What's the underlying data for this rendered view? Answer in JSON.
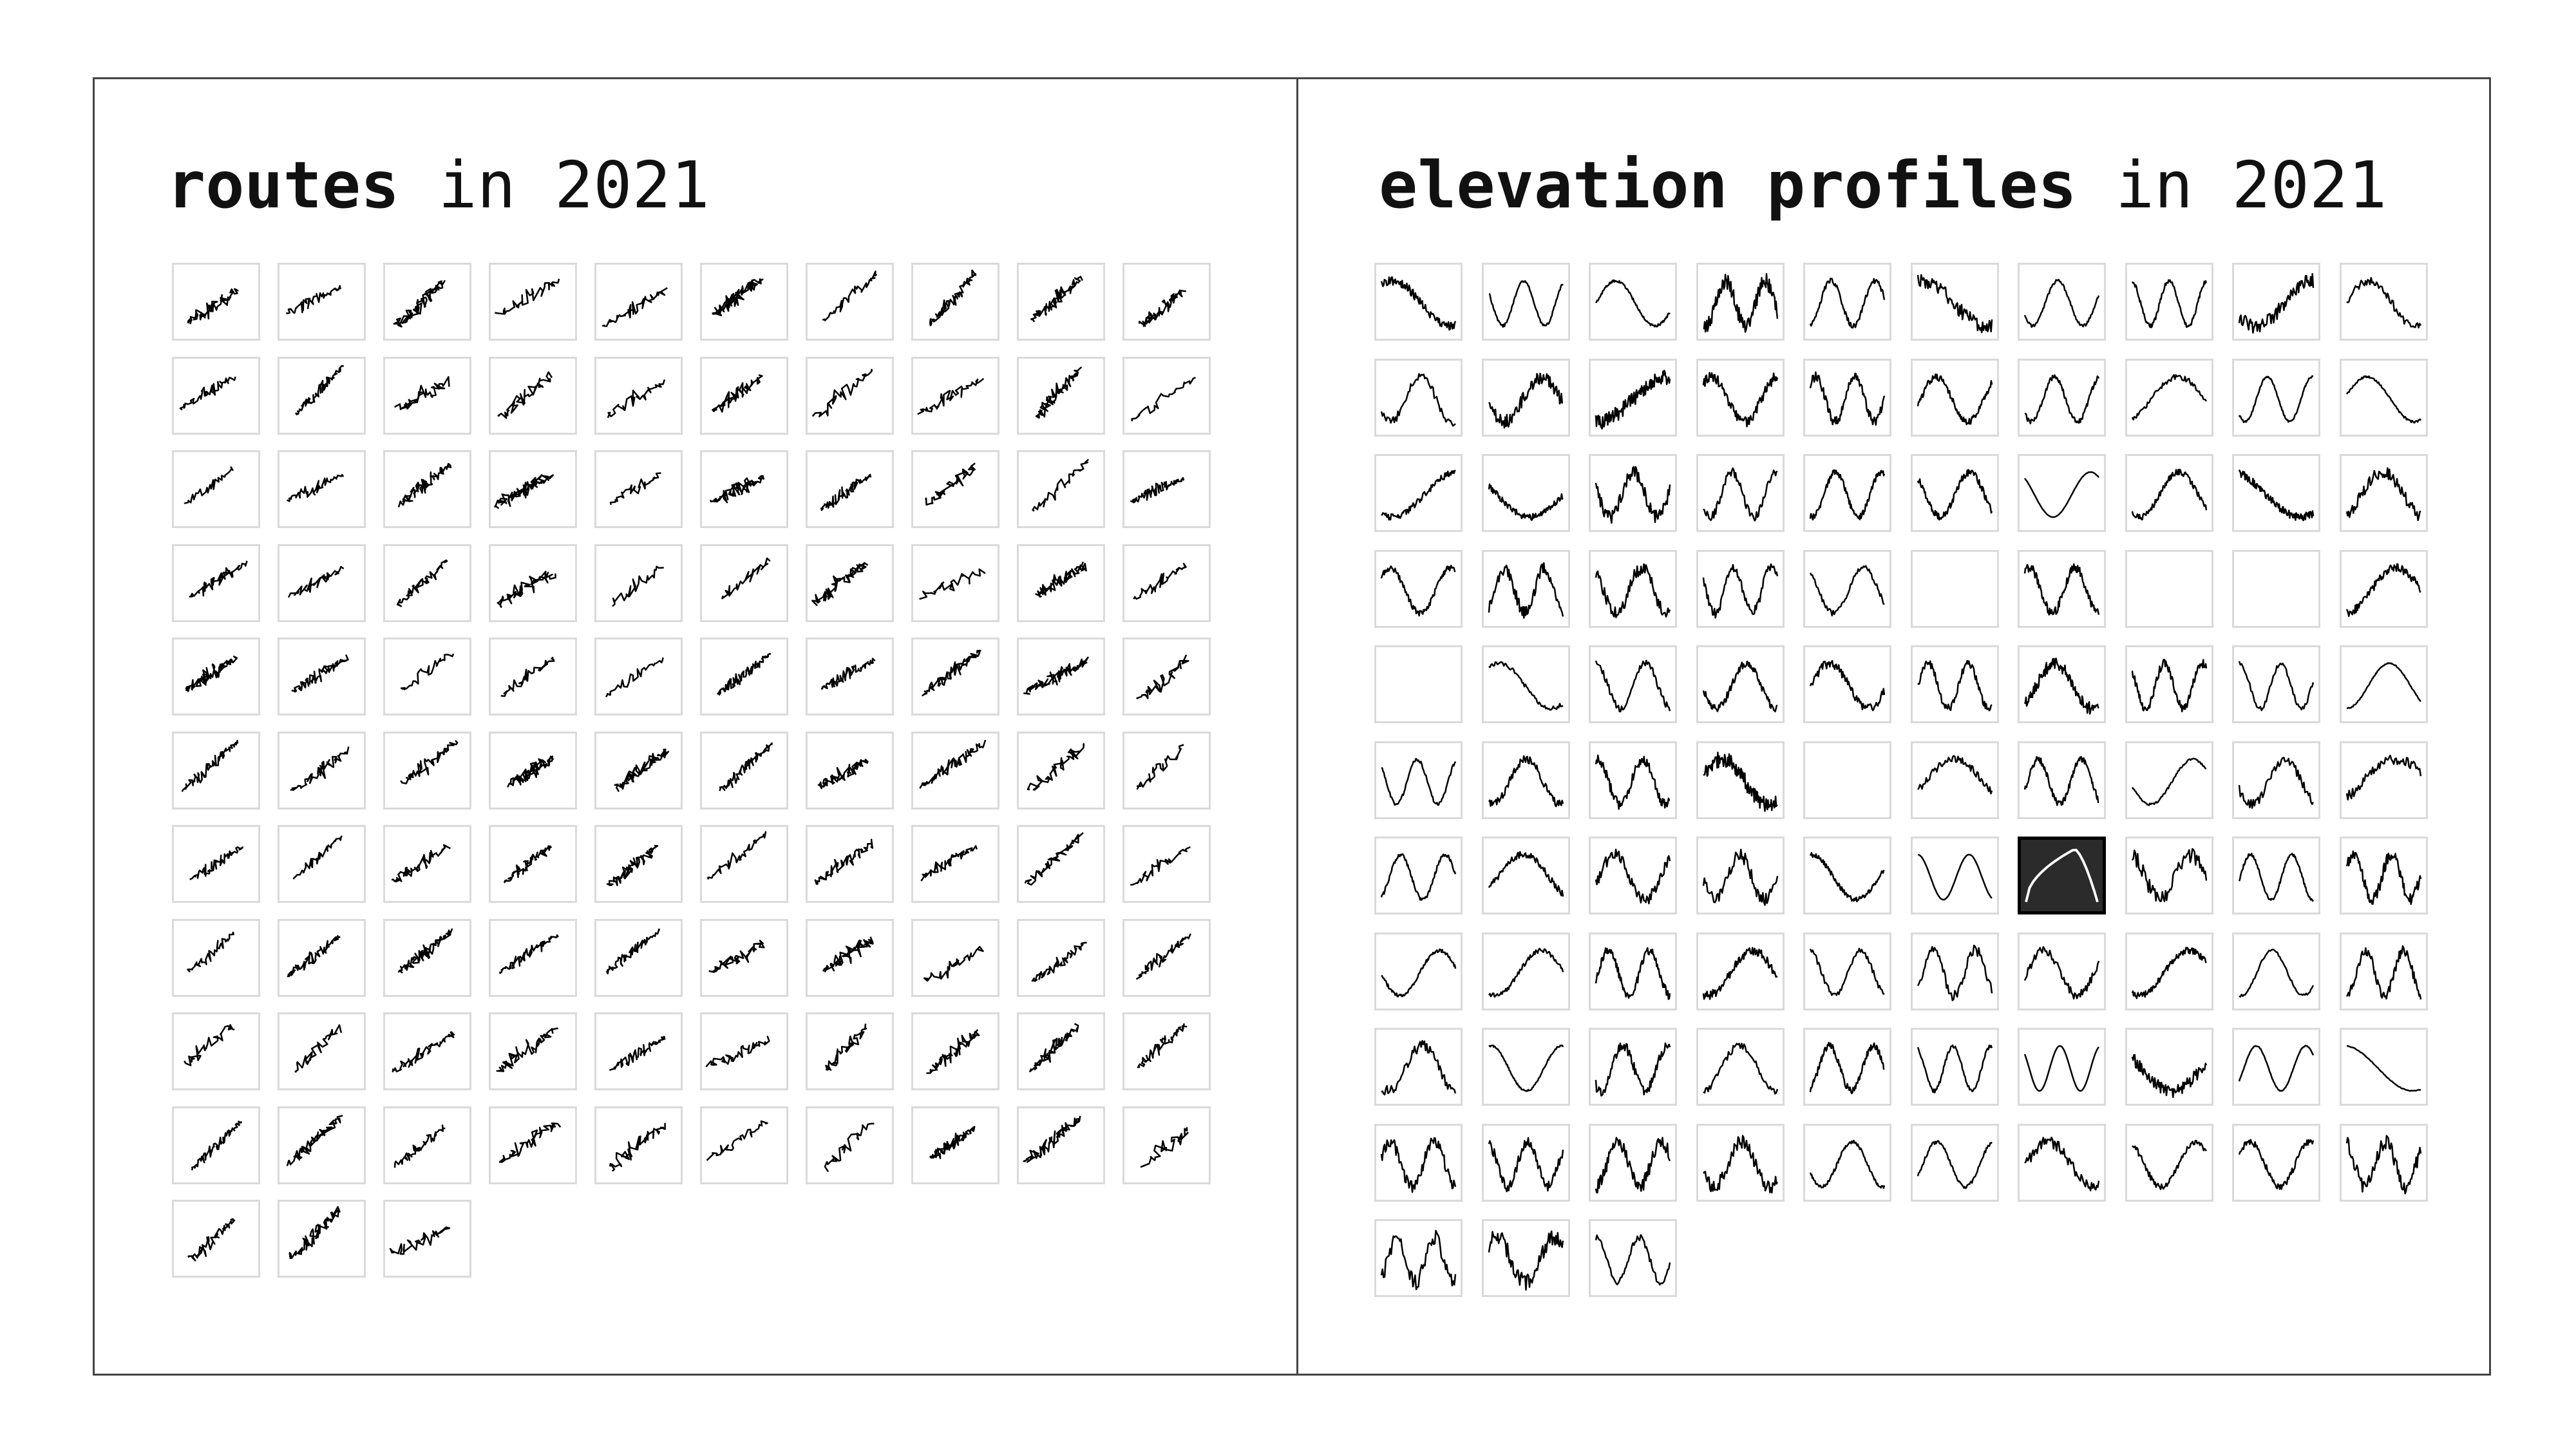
{
  "routes_panel": {
    "title_bold": "routes",
    "title_rest": " in 2021",
    "tile_count": 103
  },
  "elevation_panel": {
    "title_bold": "elevation profiles",
    "title_rest": " in 2021",
    "tile_count": 103,
    "empty_tiles": [
      35,
      37,
      38,
      40,
      54
    ],
    "selected_tile": 66
  },
  "colors": {
    "line": "#000000",
    "tile_border": "#dadada",
    "selected_bg": "#2b2b2b",
    "selected_line": "#ffffff"
  }
}
